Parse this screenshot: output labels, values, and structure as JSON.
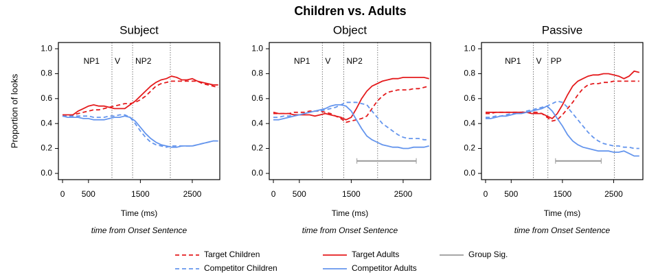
{
  "title": "Children vs. Adults",
  "legend": [
    {
      "name": "Target Children",
      "color": "#e41a1c",
      "dash": true
    },
    {
      "name": "Competitor Children",
      "color": "#6495ed",
      "dash": true
    },
    {
      "name": "Target Adults",
      "color": "#e41a1c",
      "dash": false
    },
    {
      "name": "Competitor Adults",
      "color": "#6495ed",
      "dash": false
    },
    {
      "name": "Group Sig.",
      "color": "#999999",
      "dash": false
    }
  ],
  "chart_data": [
    {
      "type": "line",
      "title": "Subject",
      "ylabel": "Proportion of looks",
      "xlabel": "Time (ms)",
      "note": "time from Onset Sentence",
      "xlim": [
        -80,
        3030
      ],
      "ylim": [
        -0.05,
        1.05
      ],
      "xticks": [
        0,
        500,
        1500,
        2500
      ],
      "yticks": [
        {
          "value": 0,
          "label": "0.0"
        },
        0.2,
        0.4,
        0.6,
        0.8,
        {
          "value": 1,
          "label": "1.0"
        }
      ],
      "regions": [
        "NP1",
        "V",
        "NP2"
      ],
      "boundaries": [
        952,
        1350,
        2077
      ],
      "x": [
        0,
        100,
        200,
        300,
        400,
        500,
        600,
        700,
        800,
        900,
        1000,
        1100,
        1200,
        1300,
        1400,
        1500,
        1600,
        1700,
        1800,
        1900,
        2000,
        2100,
        2200,
        2300,
        2400,
        2500,
        2600,
        2700,
        2800,
        2900,
        3000
      ],
      "series": [
        {
          "color": "#e41a1c",
          "dash": true,
          "values": [
            0.46,
            0.46,
            0.47,
            0.48,
            0.49,
            0.5,
            0.51,
            0.51,
            0.52,
            0.53,
            0.54,
            0.55,
            0.56,
            0.56,
            0.57,
            0.59,
            0.62,
            0.66,
            0.7,
            0.72,
            0.73,
            0.74,
            0.74,
            0.74,
            0.74,
            0.74,
            0.74,
            0.72,
            0.71,
            0.7,
            0.69
          ]
        },
        {
          "color": "#6495ed",
          "dash": true,
          "values": [
            0.46,
            0.46,
            0.46,
            0.46,
            0.46,
            0.46,
            0.45,
            0.45,
            0.45,
            0.46,
            0.46,
            0.47,
            0.47,
            0.45,
            0.4,
            0.34,
            0.29,
            0.25,
            0.23,
            0.22,
            0.21,
            0.22,
            0.22,
            0.22,
            0.22,
            0.22,
            0.23,
            0.24,
            0.25,
            0.26,
            0.26
          ]
        },
        {
          "color": "#e41a1c",
          "dash": false,
          "values": [
            0.47,
            0.47,
            0.47,
            0.5,
            0.52,
            0.54,
            0.55,
            0.54,
            0.54,
            0.53,
            0.52,
            0.52,
            0.52,
            0.55,
            0.58,
            0.62,
            0.66,
            0.7,
            0.73,
            0.75,
            0.76,
            0.78,
            0.77,
            0.75,
            0.75,
            0.76,
            0.74,
            0.73,
            0.72,
            0.71,
            0.71
          ]
        },
        {
          "color": "#6495ed",
          "dash": false,
          "values": [
            0.46,
            0.45,
            0.45,
            0.45,
            0.44,
            0.44,
            0.43,
            0.43,
            0.43,
            0.44,
            0.45,
            0.45,
            0.46,
            0.45,
            0.42,
            0.37,
            0.32,
            0.28,
            0.25,
            0.23,
            0.22,
            0.21,
            0.21,
            0.22,
            0.22,
            0.22,
            0.23,
            0.24,
            0.25,
            0.26,
            0.26
          ]
        }
      ]
    },
    {
      "type": "line",
      "title": "Object",
      "xlabel": "Time (ms)",
      "note": "time from Onset Sentence",
      "xlim": [
        -80,
        3030
      ],
      "ylim": [
        -0.05,
        1.05
      ],
      "xticks": [
        0,
        500,
        1500,
        2500
      ],
      "yticks": [
        {
          "value": 0,
          "label": "0.0"
        },
        0.2,
        0.4,
        0.6,
        0.8,
        {
          "value": 1,
          "label": "1.0"
        }
      ],
      "regions": [
        "NP1",
        "V",
        "NP2"
      ],
      "boundaries": [
        944,
        1356,
        2008
      ],
      "group_sig": [
        1609,
        2753
      ],
      "x": [
        0,
        100,
        200,
        300,
        400,
        500,
        600,
        700,
        800,
        900,
        1000,
        1100,
        1200,
        1300,
        1400,
        1500,
        1600,
        1700,
        1800,
        1900,
        2000,
        2100,
        2200,
        2300,
        2400,
        2500,
        2600,
        2700,
        2800,
        2900,
        3000
      ],
      "series": [
        {
          "color": "#e41a1c",
          "dash": true,
          "values": [
            0.48,
            0.48,
            0.48,
            0.48,
            0.49,
            0.49,
            0.49,
            0.5,
            0.5,
            0.5,
            0.49,
            0.48,
            0.46,
            0.44,
            0.41,
            0.42,
            0.43,
            0.44,
            0.46,
            0.52,
            0.58,
            0.62,
            0.65,
            0.66,
            0.67,
            0.67,
            0.67,
            0.68,
            0.68,
            0.69,
            0.7
          ]
        },
        {
          "color": "#6495ed",
          "dash": true,
          "values": [
            0.45,
            0.45,
            0.46,
            0.46,
            0.47,
            0.47,
            0.48,
            0.49,
            0.5,
            0.5,
            0.51,
            0.52,
            0.53,
            0.55,
            0.57,
            0.57,
            0.57,
            0.56,
            0.55,
            0.5,
            0.45,
            0.4,
            0.37,
            0.34,
            0.31,
            0.29,
            0.28,
            0.28,
            0.28,
            0.27,
            0.27
          ]
        },
        {
          "color": "#e41a1c",
          "dash": false,
          "values": [
            0.49,
            0.48,
            0.48,
            0.48,
            0.47,
            0.47,
            0.47,
            0.47,
            0.46,
            0.47,
            0.48,
            0.47,
            0.46,
            0.45,
            0.43,
            0.45,
            0.52,
            0.6,
            0.66,
            0.7,
            0.72,
            0.74,
            0.75,
            0.76,
            0.76,
            0.77,
            0.77,
            0.77,
            0.77,
            0.77,
            0.76
          ]
        },
        {
          "color": "#6495ed",
          "dash": false,
          "values": [
            0.43,
            0.43,
            0.44,
            0.45,
            0.46,
            0.47,
            0.48,
            0.49,
            0.5,
            0.51,
            0.52,
            0.54,
            0.55,
            0.55,
            0.54,
            0.5,
            0.43,
            0.36,
            0.3,
            0.27,
            0.25,
            0.23,
            0.22,
            0.21,
            0.21,
            0.2,
            0.2,
            0.21,
            0.21,
            0.21,
            0.22
          ]
        }
      ]
    },
    {
      "type": "line",
      "title": "Passive",
      "xlabel": "Time (ms)",
      "note": "time from Onset Sentence",
      "xlim": [
        -80,
        3070
      ],
      "ylim": [
        -0.05,
        1.05
      ],
      "xticks": [
        0,
        500,
        1500,
        2500
      ],
      "yticks": [
        {
          "value": 0,
          "label": "0.0"
        },
        0.2,
        0.4,
        0.6,
        0.8,
        {
          "value": 1,
          "label": "1.0"
        }
      ],
      "regions": [
        "NP1",
        "V",
        "PP"
      ],
      "boundaries": [
        932,
        1216,
        2513
      ],
      "group_sig": [
        1365,
        2257
      ],
      "x": [
        0,
        100,
        200,
        300,
        400,
        500,
        600,
        700,
        800,
        900,
        1000,
        1100,
        1200,
        1300,
        1400,
        1500,
        1600,
        1700,
        1800,
        1900,
        2000,
        2100,
        2200,
        2300,
        2400,
        2500,
        2600,
        2700,
        2800,
        2900,
        3000
      ],
      "series": [
        {
          "color": "#e41a1c",
          "dash": true,
          "values": [
            0.48,
            0.48,
            0.49,
            0.49,
            0.49,
            0.49,
            0.49,
            0.49,
            0.49,
            0.49,
            0.49,
            0.48,
            0.45,
            0.42,
            0.43,
            0.47,
            0.52,
            0.57,
            0.63,
            0.68,
            0.71,
            0.72,
            0.72,
            0.73,
            0.73,
            0.74,
            0.74,
            0.74,
            0.74,
            0.74,
            0.74
          ]
        },
        {
          "color": "#6495ed",
          "dash": true,
          "values": [
            0.45,
            0.45,
            0.46,
            0.46,
            0.47,
            0.48,
            0.48,
            0.49,
            0.5,
            0.51,
            0.52,
            0.53,
            0.54,
            0.56,
            0.58,
            0.57,
            0.53,
            0.48,
            0.43,
            0.38,
            0.33,
            0.29,
            0.26,
            0.24,
            0.23,
            0.22,
            0.22,
            0.21,
            0.21,
            0.2,
            0.2
          ]
        },
        {
          "color": "#e41a1c",
          "dash": false,
          "values": [
            0.49,
            0.49,
            0.49,
            0.49,
            0.49,
            0.49,
            0.49,
            0.49,
            0.49,
            0.48,
            0.48,
            0.48,
            0.46,
            0.44,
            0.48,
            0.55,
            0.63,
            0.7,
            0.74,
            0.76,
            0.78,
            0.79,
            0.79,
            0.8,
            0.8,
            0.79,
            0.78,
            0.76,
            0.78,
            0.82,
            0.81
          ]
        },
        {
          "color": "#6495ed",
          "dash": false,
          "values": [
            0.44,
            0.44,
            0.45,
            0.46,
            0.46,
            0.47,
            0.48,
            0.48,
            0.49,
            0.5,
            0.51,
            0.52,
            0.54,
            0.5,
            0.44,
            0.38,
            0.31,
            0.26,
            0.23,
            0.21,
            0.2,
            0.19,
            0.18,
            0.18,
            0.18,
            0.17,
            0.17,
            0.18,
            0.16,
            0.14,
            0.14
          ]
        }
      ]
    }
  ]
}
